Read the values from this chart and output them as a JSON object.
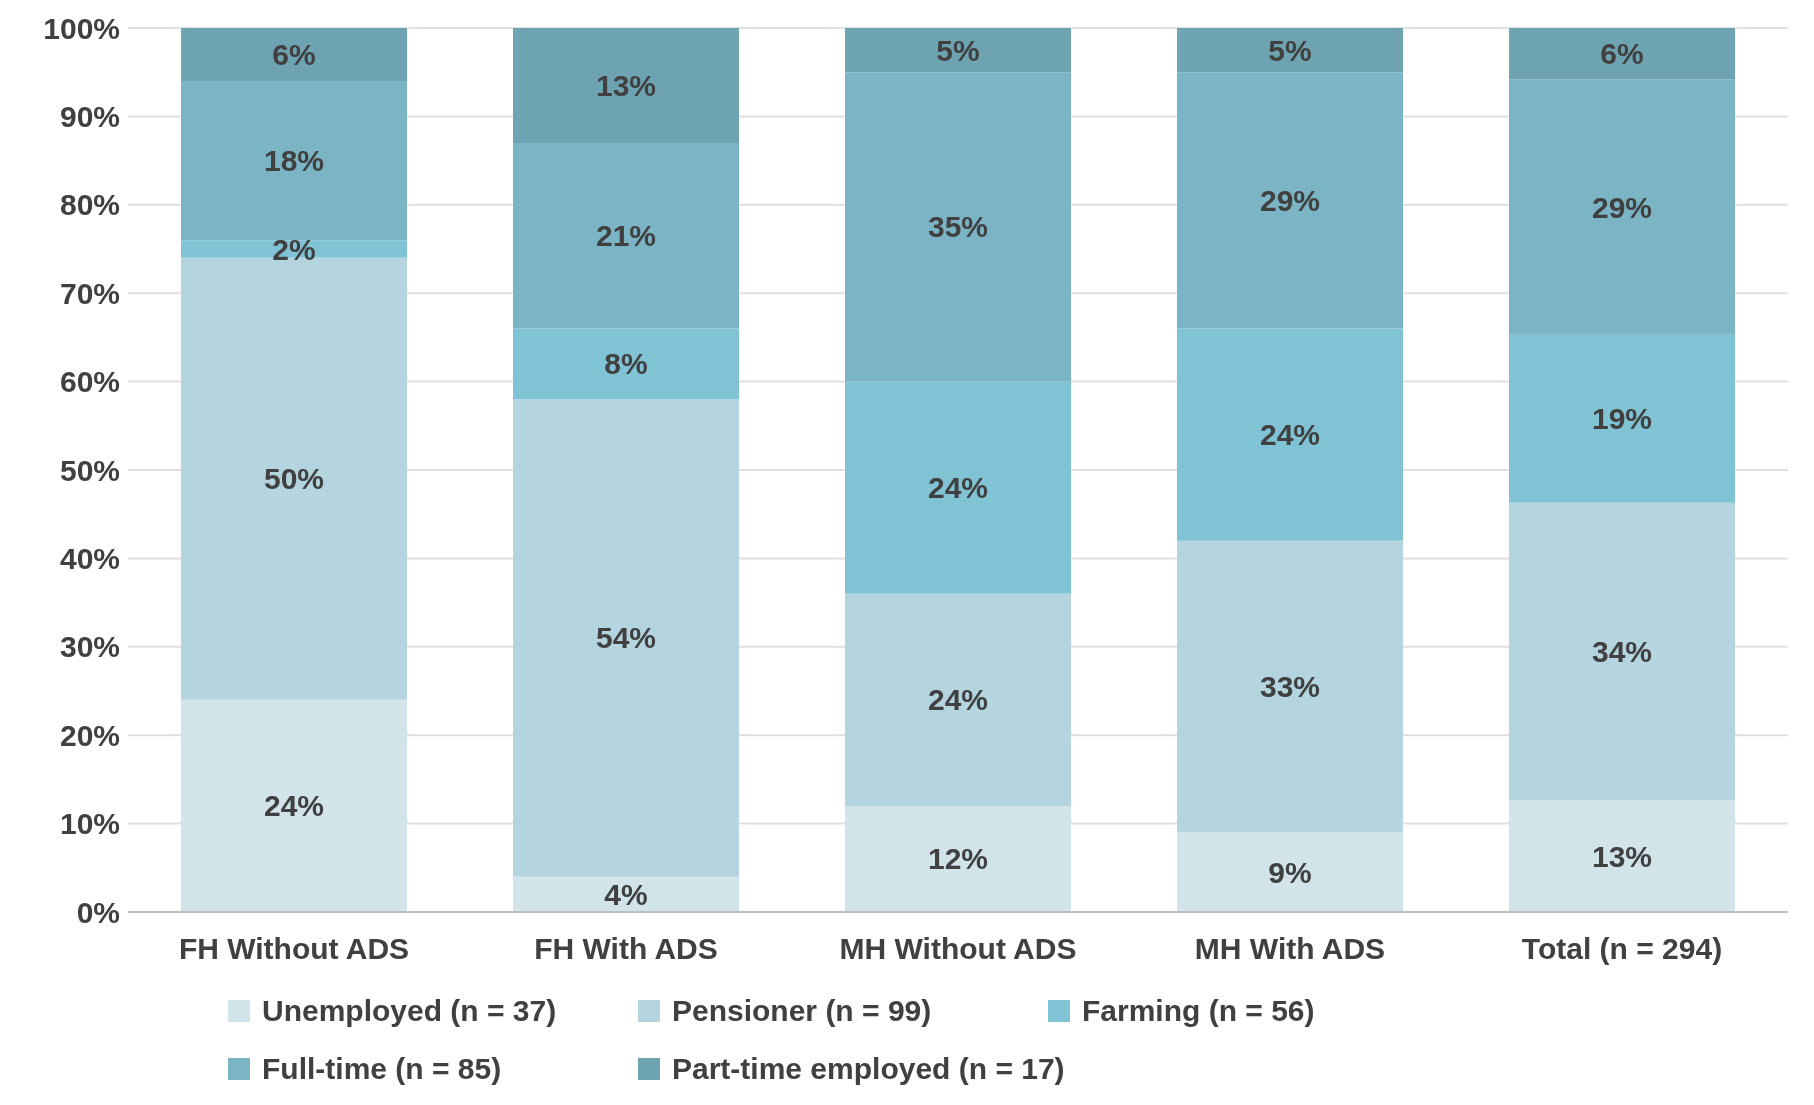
{
  "chart_data": {
    "type": "bar",
    "stacked": true,
    "categories": [
      "FH Without ADS",
      "FH With ADS",
      "MH Without ADS",
      "MH With ADS",
      "Total (n = 294)"
    ],
    "series": [
      {
        "name": "Unemployed (n = 37)",
        "color": "#d1e4ea",
        "values": [
          24,
          4,
          12,
          9,
          12.6
        ],
        "value_labels": [
          "24%",
          "4%",
          "12%",
          "9%",
          "13%"
        ]
      },
      {
        "name": "Pensioner (n = 99)",
        "color": "#b4d5e0",
        "values": [
          50,
          54,
          24,
          33,
          33.7
        ],
        "value_labels": [
          "50%",
          "54%",
          "24%",
          "33%",
          "34%"
        ]
      },
      {
        "name": "Farming (n = 56)",
        "color": "#80c3d5",
        "values": [
          2,
          8,
          24,
          24,
          19
        ],
        "value_labels": [
          "2%",
          "8%",
          "24%",
          "24%",
          "19%"
        ]
      },
      {
        "name": "Full-time (n = 85)",
        "color": "#7bb4c5",
        "values": [
          18,
          21,
          35,
          29,
          28.9
        ],
        "value_labels": [
          "18%",
          "21%",
          "35%",
          "29%",
          "29%"
        ]
      },
      {
        "name": "Part-time employed (n = 17)",
        "color": "#6ea4b2",
        "values": [
          6,
          13,
          5,
          5,
          5.8
        ],
        "value_labels": [
          "6%",
          "13%",
          "5%",
          "5%",
          "6%"
        ]
      }
    ],
    "ylim": [
      0,
      100
    ],
    "yticks": [
      {
        "value": 0,
        "label": "0%"
      },
      {
        "value": 10,
        "label": "10%"
      },
      {
        "value": 20,
        "label": "20%"
      },
      {
        "value": 30,
        "label": "30%"
      },
      {
        "value": 40,
        "label": "40%"
      },
      {
        "value": 50,
        "label": "50%"
      },
      {
        "value": 60,
        "label": "60%"
      },
      {
        "value": 70,
        "label": "70%"
      },
      {
        "value": 80,
        "label": "80%"
      },
      {
        "value": 90,
        "label": "90%"
      },
      {
        "value": 100,
        "label": "100%"
      }
    ],
    "grid": "y",
    "legend": "bottom"
  }
}
